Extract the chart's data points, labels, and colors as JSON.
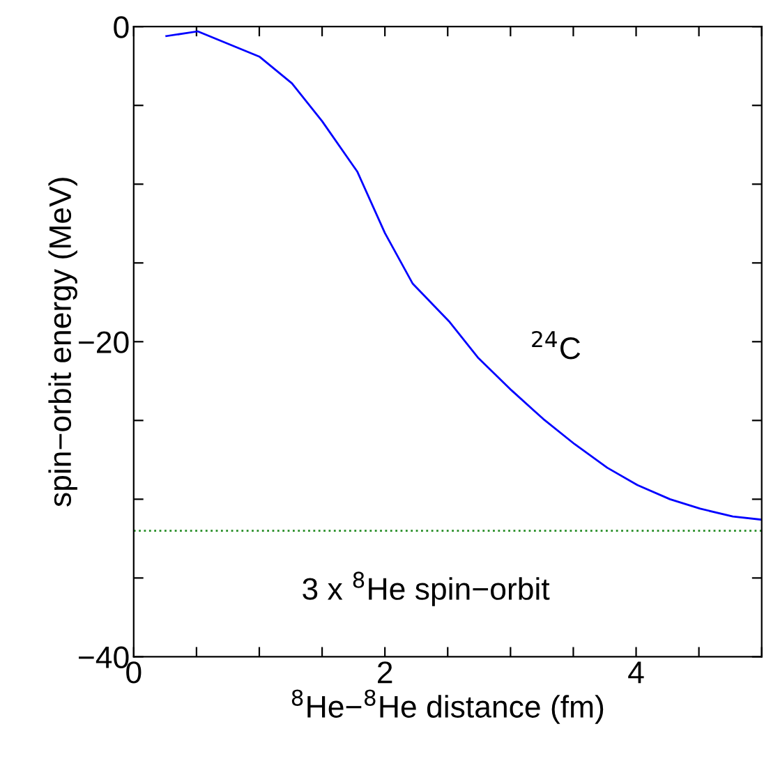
{
  "chart_data": {
    "type": "line",
    "xlabel": "$^{8}$He−$^{8}$He distance (fm)",
    "ylabel": "spin−orbit energy (MeV)",
    "x": [
      0.26,
      0.51,
      1.0,
      1.26,
      1.5,
      1.78,
      2.0,
      2.22,
      2.51,
      2.74,
      3.01,
      3.26,
      3.51,
      3.77,
      4.01,
      4.27,
      4.51,
      4.77,
      5.0
    ],
    "series": [
      {
        "name": "$^{24}$C",
        "color": "#0000ff",
        "values": [
          -0.6,
          -0.3,
          -1.9,
          -3.6,
          -6.0,
          -9.2,
          -13.1,
          -16.3,
          -18.7,
          -21.0,
          -23.1,
          -24.9,
          -26.5,
          -28.0,
          -29.1,
          -30.0,
          -30.6,
          -31.1,
          -31.3
        ]
      }
    ],
    "ref_lines": [
      {
        "axis": "y",
        "value": -32,
        "label": "3 x $^{8}$He spin−orbit",
        "color": "#228b22",
        "line_style": "dotted"
      }
    ],
    "xlim": [
      0,
      5
    ],
    "ylim": [
      -40,
      0
    ],
    "xticks": [
      0,
      {
        "value": 0.5,
        "label": null
      },
      {
        "value": 1,
        "label": null
      },
      {
        "value": 1.5,
        "label": null
      },
      2,
      {
        "value": 2.5,
        "label": null
      },
      {
        "value": 3,
        "label": null
      },
      {
        "value": 3.5,
        "label": null
      },
      4,
      {
        "value": 4.5,
        "label": null
      },
      {
        "value": 5,
        "label": null
      }
    ],
    "yticks": [
      {
        "value": -40,
        "label": "−40"
      },
      {
        "value": -35,
        "label": null
      },
      {
        "value": -30,
        "label": null
      },
      {
        "value": -25,
        "label": null
      },
      {
        "value": -20,
        "label": "−20"
      },
      {
        "value": -15,
        "label": null
      },
      {
        "value": -10,
        "label": null
      },
      {
        "value": -5,
        "label": null
      },
      0
    ],
    "grid": false,
    "legend": false
  }
}
